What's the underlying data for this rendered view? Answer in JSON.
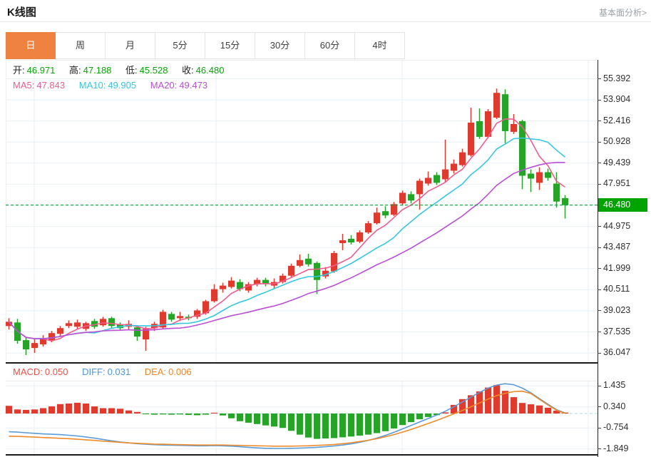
{
  "header": {
    "title": "K线图",
    "link": "基本面分析>"
  },
  "tabs": {
    "items": [
      "日",
      "周",
      "月",
      "5分",
      "15分",
      "30分",
      "60分",
      "4时"
    ],
    "active_index": 0
  },
  "ohlc": {
    "open_label": "开:",
    "open": "46.971",
    "high_label": "高:",
    "high": "47.188",
    "low_label": "低:",
    "low": "45.528",
    "close_label": "收:",
    "close": "46.480"
  },
  "ma": {
    "ma5_label": "MA5:",
    "ma5": "47.843",
    "ma10_label": "MA10:",
    "ma10": "49.905",
    "ma20_label": "MA20:",
    "ma20": "49.473"
  },
  "macd_info": {
    "macd_label": "MACD:",
    "macd": "0.050",
    "diff_label": "DIFF:",
    "diff": "0.031",
    "dea_label": "DEA:",
    "dea": "0.006"
  },
  "price_axis": {
    "current": "46.480"
  },
  "colors": {
    "up": "#e0392e",
    "down": "#25a428",
    "value_green": "#00ab00",
    "ma5": "#f25c8c",
    "ma10": "#35c7e3",
    "ma20": "#ba4fd6",
    "diff": "#5a9bd8",
    "dea": "#ef8b2a",
    "macd_label": "#f04f45",
    "diff_label": "#4a95e8",
    "dea_label": "#f5831e",
    "badge": "#00a400",
    "price_line": "#00a832",
    "zero_dash": "#a8d9f2",
    "grid": "#e8eff6",
    "tab_active": "#ef8240"
  },
  "chart_data": {
    "type": "candlestick_with_macd",
    "title": "K线图",
    "main_panel": {
      "y_ticks": [
        55.392,
        53.904,
        52.416,
        50.928,
        49.439,
        47.951,
        44.975,
        43.487,
        41.999,
        40.511,
        39.023,
        37.535,
        36.047
      ],
      "grid_extra_tick": 46.463,
      "current_price": 46.48,
      "ma_windows": [
        5,
        10,
        20
      ],
      "ma_last_values": {
        "MA5": 47.843,
        "MA10": 49.905,
        "MA20": 49.473
      },
      "candles_ohlc": [
        [
          37.95,
          38.5,
          37.7,
          38.25
        ],
        [
          38.2,
          38.45,
          36.7,
          36.9
        ],
        [
          36.95,
          37.15,
          35.9,
          36.3
        ],
        [
          36.4,
          37.0,
          36.05,
          36.75
        ],
        [
          36.65,
          37.3,
          36.5,
          37.05
        ],
        [
          36.95,
          37.6,
          36.8,
          37.45
        ],
        [
          37.4,
          37.95,
          37.25,
          37.8
        ],
        [
          37.95,
          38.35,
          37.8,
          38.15
        ],
        [
          37.9,
          38.4,
          37.75,
          38.2
        ],
        [
          37.75,
          38.25,
          37.6,
          38.15
        ],
        [
          38.3,
          38.45,
          37.75,
          37.9
        ],
        [
          38.0,
          38.6,
          37.9,
          38.45
        ],
        [
          38.5,
          38.6,
          37.8,
          37.95
        ],
        [
          38.05,
          38.2,
          37.65,
          37.8
        ],
        [
          37.9,
          38.35,
          37.7,
          38.1
        ],
        [
          37.85,
          38.0,
          36.9,
          37.2
        ],
        [
          37.0,
          37.9,
          36.2,
          37.75
        ],
        [
          37.8,
          38.25,
          37.6,
          38.1
        ],
        [
          37.85,
          39.1,
          37.75,
          38.95
        ],
        [
          38.8,
          38.95,
          38.25,
          38.4
        ],
        [
          38.5,
          38.95,
          38.3,
          38.65
        ],
        [
          38.6,
          38.75,
          38.35,
          38.5
        ],
        [
          38.6,
          39.15,
          38.45,
          39.05
        ],
        [
          38.85,
          39.8,
          38.75,
          39.7
        ],
        [
          39.7,
          40.9,
          39.6,
          40.55
        ],
        [
          40.55,
          41.0,
          40.3,
          40.8
        ],
        [
          40.7,
          41.4,
          40.6,
          41.15
        ],
        [
          41.05,
          41.25,
          40.4,
          40.55
        ],
        [
          40.45,
          41.05,
          40.3,
          40.9
        ],
        [
          40.9,
          41.35,
          40.75,
          41.2
        ],
        [
          41.2,
          41.35,
          40.75,
          40.9
        ],
        [
          40.8,
          41.3,
          40.6,
          41.05
        ],
        [
          41.05,
          41.65,
          40.95,
          41.5
        ],
        [
          41.5,
          42.35,
          41.4,
          42.2
        ],
        [
          42.2,
          43.0,
          42.1,
          42.6
        ],
        [
          42.7,
          43.05,
          42.15,
          42.3
        ],
        [
          42.4,
          42.5,
          40.2,
          41.2
        ],
        [
          41.45,
          42.1,
          41.3,
          41.85
        ],
        [
          41.8,
          43.25,
          41.7,
          43.1
        ],
        [
          43.8,
          44.45,
          43.3,
          44.0
        ],
        [
          44.1,
          44.35,
          43.7,
          43.85
        ],
        [
          43.9,
          44.7,
          43.8,
          44.55
        ],
        [
          44.55,
          45.35,
          44.45,
          45.2
        ],
        [
          45.2,
          46.3,
          45.1,
          45.95
        ],
        [
          46.05,
          46.4,
          45.55,
          45.75
        ],
        [
          45.8,
          46.7,
          45.7,
          46.55
        ],
        [
          46.6,
          47.5,
          46.45,
          47.35
        ],
        [
          47.25,
          47.45,
          46.6,
          46.8
        ],
        [
          47.25,
          48.35,
          46.15,
          48.2
        ],
        [
          48.0,
          48.85,
          47.85,
          48.4
        ],
        [
          48.6,
          48.8,
          47.9,
          48.05
        ],
        [
          48.3,
          51.1,
          48.1,
          49.0
        ],
        [
          48.9,
          49.7,
          48.7,
          49.4
        ],
        [
          49.3,
          50.45,
          49.2,
          50.2
        ],
        [
          50.0,
          53.35,
          49.9,
          52.3
        ],
        [
          52.4,
          53.3,
          51.15,
          51.3
        ],
        [
          51.3,
          53.25,
          51.2,
          53.1
        ],
        [
          52.65,
          54.7,
          52.55,
          54.4
        ],
        [
          54.3,
          54.65,
          50.85,
          51.7
        ],
        [
          51.65,
          52.9,
          51.5,
          52.2
        ],
        [
          52.4,
          52.5,
          47.6,
          48.55
        ],
        [
          48.7,
          49.0,
          47.4,
          48.35
        ],
        [
          48.05,
          49.15,
          47.55,
          48.8
        ],
        [
          48.8,
          49.05,
          48.2,
          48.4
        ],
        [
          48.0,
          48.8,
          46.3,
          46.73
        ],
        [
          46.971,
          47.188,
          45.528,
          46.48
        ]
      ]
    },
    "macd_panel": {
      "y_ticks": [
        1.435,
        0.34,
        -0.754,
        -1.849
      ],
      "last_values": {
        "MACD": 0.05,
        "DIFF": 0.031,
        "DEA": 0.006
      },
      "histogram": [
        0.4,
        0.21,
        0.19,
        0.21,
        0.28,
        0.37,
        0.49,
        0.52,
        0.56,
        0.52,
        0.37,
        0.28,
        0.28,
        0.25,
        0.16,
        0.08,
        -0.04,
        -0.06,
        -0.05,
        -0.06,
        -0.05,
        -0.07,
        -0.09,
        -0.06,
        0.04,
        -0.1,
        -0.25,
        -0.4,
        -0.48,
        -0.55,
        -0.62,
        -0.68,
        -0.75,
        -0.9,
        -1.1,
        -1.25,
        -1.32,
        -1.3,
        -1.28,
        -1.24,
        -1.2,
        -1.15,
        -1.1,
        -1.02,
        -0.92,
        -0.78,
        -0.6,
        -0.45,
        -0.3,
        -0.18,
        -0.08,
        0.06,
        0.45,
        0.75,
        0.95,
        1.15,
        1.35,
        1.48,
        1.18,
        0.85,
        0.55,
        0.48,
        0.42,
        0.3,
        0.15,
        0.05
      ],
      "diff_line": [
        -0.95,
        -0.97,
        -1.0,
        -1.03,
        -1.06,
        -1.08,
        -1.1,
        -1.13,
        -1.17,
        -1.22,
        -1.28,
        -1.35,
        -1.42,
        -1.48,
        -1.53,
        -1.57,
        -1.6,
        -1.62,
        -1.64,
        -1.65,
        -1.66,
        -1.67,
        -1.68,
        -1.68,
        -1.67,
        -1.68,
        -1.7,
        -1.73,
        -1.76,
        -1.79,
        -1.81,
        -1.82,
        -1.82,
        -1.81,
        -1.8,
        -1.78,
        -1.76,
        -1.73,
        -1.69,
        -1.64,
        -1.58,
        -1.5,
        -1.4,
        -1.28,
        -1.14,
        -0.98,
        -0.8,
        -0.62,
        -0.44,
        -0.26,
        -0.08,
        0.12,
        0.35,
        0.6,
        0.85,
        1.1,
        1.32,
        1.48,
        1.55,
        1.5,
        1.32,
        1.08,
        0.78,
        0.48,
        0.2,
        0.03
      ],
      "dea_line": [
        -1.18,
        -1.19,
        -1.21,
        -1.23,
        -1.25,
        -1.27,
        -1.29,
        -1.31,
        -1.34,
        -1.37,
        -1.4,
        -1.44,
        -1.47,
        -1.5,
        -1.53,
        -1.55,
        -1.57,
        -1.59,
        -1.6,
        -1.61,
        -1.62,
        -1.63,
        -1.64,
        -1.64,
        -1.64,
        -1.64,
        -1.65,
        -1.66,
        -1.67,
        -1.68,
        -1.69,
        -1.7,
        -1.7,
        -1.7,
        -1.69,
        -1.68,
        -1.66,
        -1.64,
        -1.61,
        -1.57,
        -1.52,
        -1.46,
        -1.39,
        -1.31,
        -1.21,
        -1.1,
        -0.97,
        -0.83,
        -0.68,
        -0.52,
        -0.36,
        -0.19,
        -0.02,
        0.16,
        0.35,
        0.55,
        0.75,
        0.93,
        1.05,
        1.14,
        1.16,
        1.04,
        0.74,
        0.44,
        0.17,
        0.01
      ]
    }
  }
}
